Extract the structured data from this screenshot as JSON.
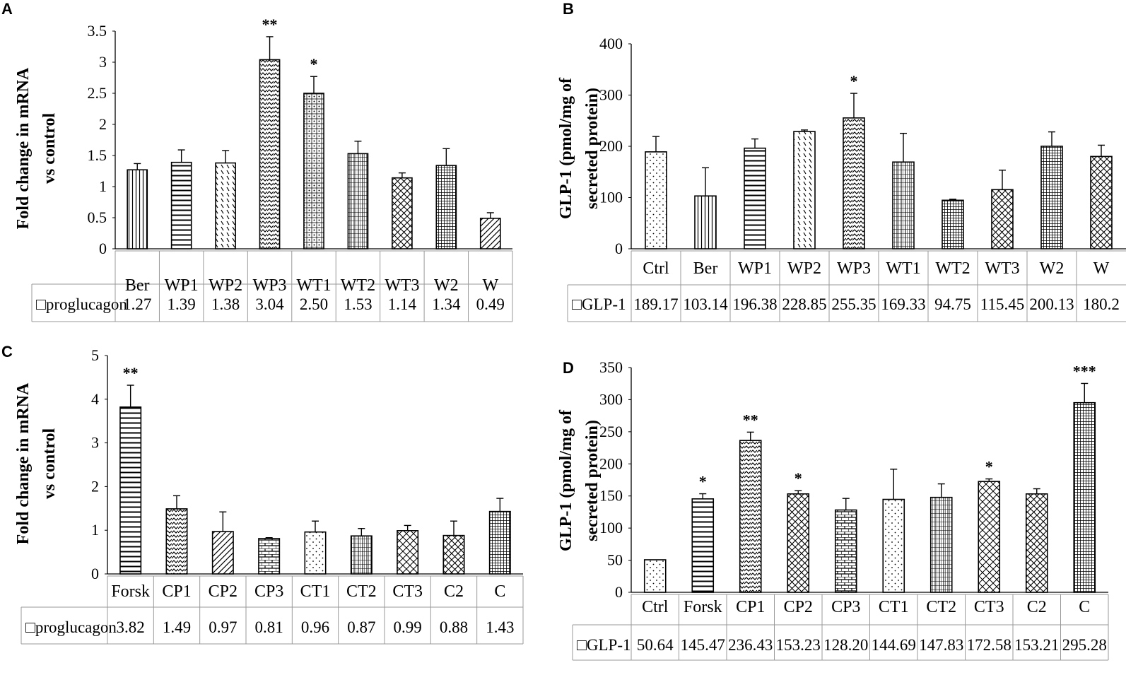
{
  "chart_data": [
    {
      "panel": "A",
      "type": "bar",
      "ylabel": [
        "Fold change in mRNA",
        "vs control"
      ],
      "yticks": [
        "0",
        "0.5",
        "1",
        "1.5",
        "2",
        "2.5",
        "3",
        "3.5"
      ],
      "ylim": [
        0,
        3.5
      ],
      "categories": [
        "Ber",
        "WP1",
        "WP2",
        "WP3",
        "WT1",
        "WT2",
        "WT3",
        "W2",
        "W"
      ],
      "series": [
        {
          "name": "proglucagon",
          "values": [
            1.27,
            1.39,
            1.38,
            3.04,
            2.5,
            1.53,
            1.14,
            1.34,
            0.49
          ],
          "labels": [
            "1.27",
            "1.39",
            "1.38",
            "3.04",
            "2.50",
            "1.53",
            "1.14",
            "1.34",
            "0.49"
          ],
          "errors": [
            0.1,
            0.2,
            0.2,
            0.37,
            0.27,
            0.2,
            0.08,
            0.27,
            0.09
          ]
        }
      ],
      "significance": [
        "",
        "",
        "",
        "**",
        "*",
        "",
        "",
        "",
        ""
      ],
      "patterns": [
        "vlines",
        "hlines",
        "diagshort",
        "zigzag",
        "dots",
        "grid",
        "crosshatch",
        "dense",
        "diag"
      ]
    },
    {
      "panel": "B",
      "type": "bar",
      "ylabel": [
        "GLP-1 (pmol/mg of",
        "secreted protein)"
      ],
      "yticks": [
        "0",
        "100",
        "200",
        "300",
        "400"
      ],
      "ylim": [
        0,
        400
      ],
      "categories": [
        "Ctrl",
        "Ber",
        "WP1",
        "WP2",
        "WP3",
        "WT1",
        "WT2",
        "WT3",
        "W2",
        "W"
      ],
      "series": [
        {
          "name": "GLP-1",
          "values": [
            189.17,
            103.14,
            196.38,
            228.85,
            255.35,
            169.33,
            94.75,
            115.45,
            200.13,
            180.2
          ],
          "labels": [
            "189.17",
            "103.14",
            "196.38",
            "228.85",
            "255.35",
            "169.33",
            "94.75",
            "115.45",
            "200.13",
            "180.2"
          ],
          "errors": [
            30,
            55,
            18,
            3,
            48,
            56,
            2,
            38,
            28,
            22
          ]
        }
      ],
      "significance": [
        "",
        "",
        "",
        "",
        "*",
        "",
        "",
        "",
        "",
        ""
      ],
      "patterns": [
        "sparsedots",
        "vlines",
        "hlines",
        "diagshort",
        "zigzag",
        "grid",
        "dense",
        "crosshatch",
        "dense",
        "crosshatch"
      ]
    },
    {
      "panel": "C",
      "type": "bar",
      "ylabel": [
        "Fold change in mRNA",
        "vs control"
      ],
      "yticks": [
        "0",
        "1",
        "2",
        "3",
        "4",
        "5"
      ],
      "ylim": [
        0,
        5
      ],
      "categories": [
        "Forsk",
        "CP1",
        "CP2",
        "CP3",
        "CT1",
        "CT2",
        "CT3",
        "C2",
        "C"
      ],
      "series": [
        {
          "name": "proglucagon",
          "values": [
            3.82,
            1.49,
            0.97,
            0.81,
            0.96,
            0.87,
            0.99,
            0.88,
            1.43
          ],
          "labels": [
            "3.82",
            "1.49",
            "0.97",
            "0.81",
            "0.96",
            "0.87",
            "0.99",
            "0.88",
            "1.43"
          ],
          "errors": [
            0.5,
            0.3,
            0.45,
            0.02,
            0.25,
            0.17,
            0.12,
            0.33,
            0.3
          ]
        }
      ],
      "significance": [
        "**",
        "",
        "",
        "",
        "",
        "",
        "",
        "",
        ""
      ],
      "patterns": [
        "hlines",
        "zigzag",
        "diag",
        "brick",
        "sparsedots",
        "grid",
        "curvy",
        "crosshatch",
        "dense"
      ]
    },
    {
      "panel": "D",
      "type": "bar",
      "ylabel": [
        "GLP-1 (pmol/mg of",
        "secreted protein)"
      ],
      "yticks": [
        "0",
        "50",
        "100",
        "150",
        "200",
        "250",
        "300",
        "350"
      ],
      "ylim": [
        0,
        350
      ],
      "categories": [
        "Ctrl",
        "Forsk",
        "CP1",
        "CP2",
        "CP3",
        "CT1",
        "CT2",
        "CT3",
        "C2",
        "C"
      ],
      "series": [
        {
          "name": "GLP-1",
          "values": [
            50.64,
            145.47,
            236.43,
            153.23,
            128.2,
            144.69,
            147.83,
            172.58,
            153.21,
            295.28
          ],
          "labels": [
            "50.64",
            "145.47",
            "236.43",
            "153.23",
            "128.20",
            "144.69",
            "147.83",
            "172.58",
            "153.21",
            "295.28"
          ],
          "errors": [
            0,
            8,
            13,
            5,
            18,
            47,
            21,
            4,
            8,
            30
          ]
        }
      ],
      "significance": [
        "",
        "*",
        "**",
        "*",
        "",
        "",
        "",
        "*",
        "",
        "***"
      ],
      "patterns": [
        "sparsedots",
        "hlines",
        "zigzag",
        "crosshatch",
        "brick",
        "sparsedots",
        "grid",
        "curvy",
        "crosshatch",
        "dense"
      ]
    }
  ]
}
